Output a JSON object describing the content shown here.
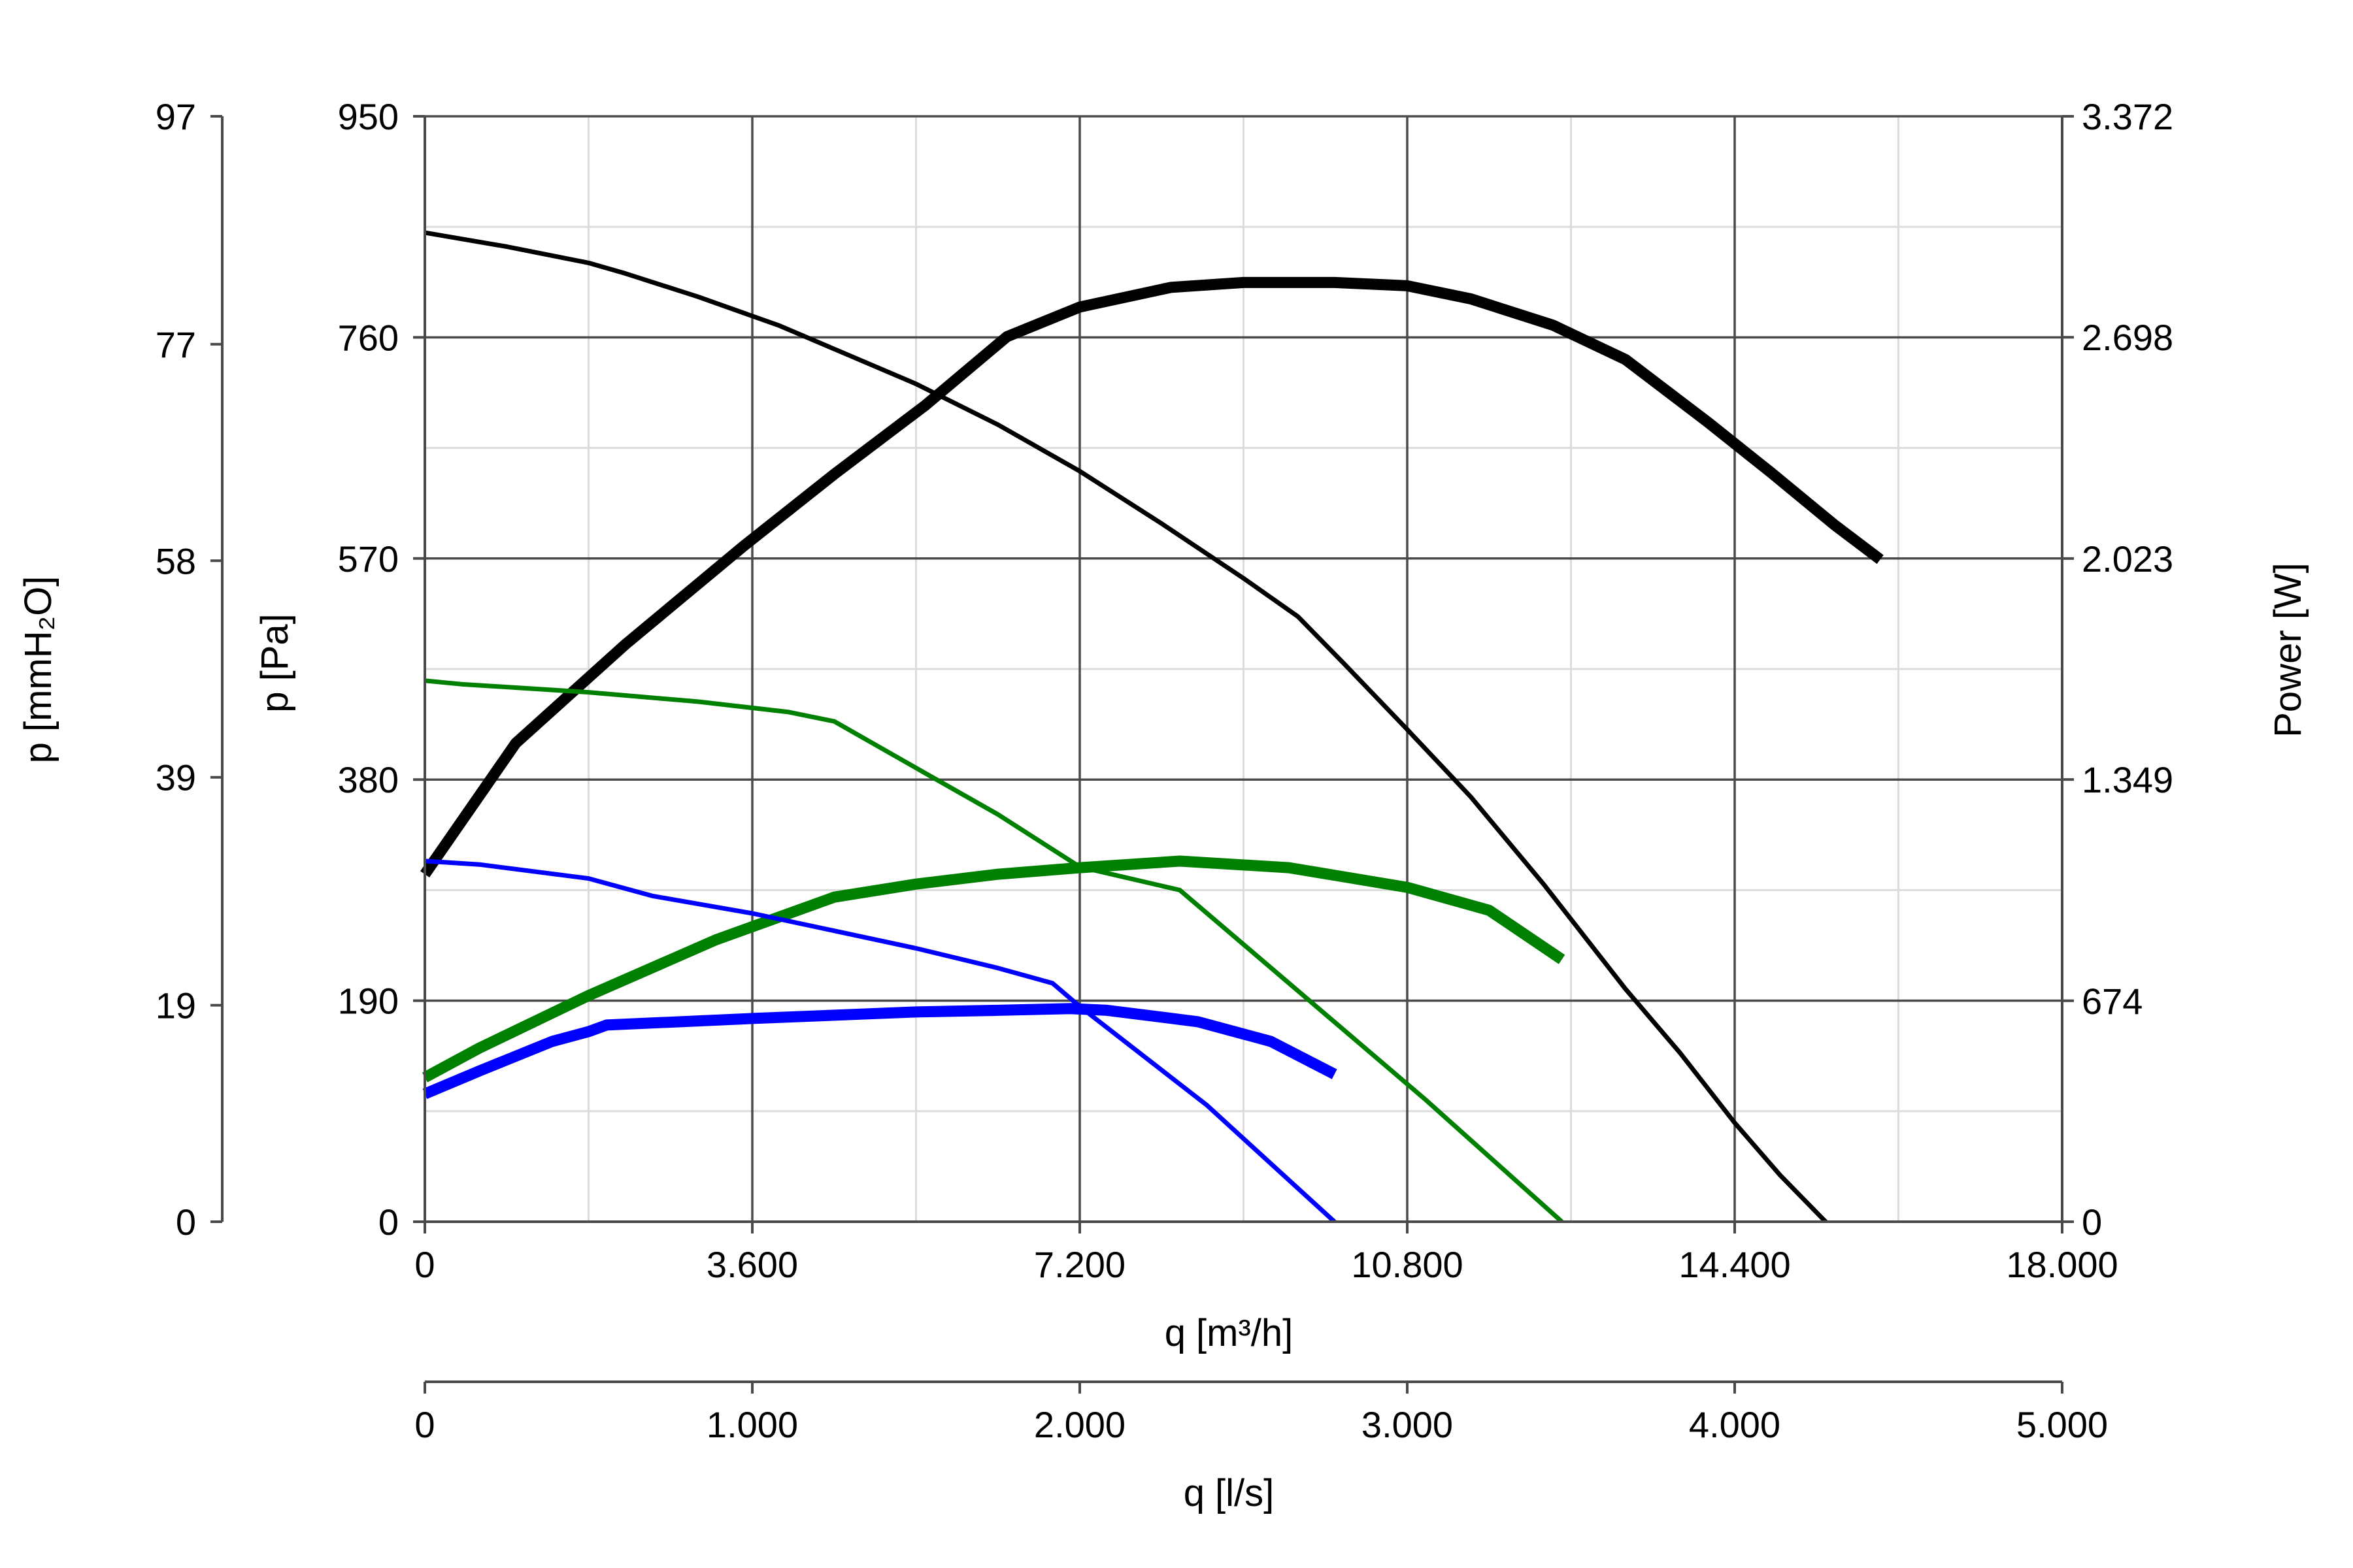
{
  "chart_data": {
    "type": "line",
    "axes": {
      "x_primary": {
        "label": "q [m³/h]",
        "range": [
          0,
          18000
        ],
        "ticks": [
          0,
          3600,
          7200,
          10800,
          14400,
          18000
        ],
        "tick_labels": [
          "0",
          "3.600",
          "7.200",
          "10.800",
          "14.400",
          "18.000"
        ]
      },
      "x_secondary": {
        "label": "q [l/s]",
        "range": [
          0,
          5000
        ],
        "ticks": [
          0,
          1000,
          2000,
          3000,
          4000,
          5000
        ],
        "tick_labels": [
          "0",
          "1.000",
          "2.000",
          "3.000",
          "4.000",
          "5.000"
        ]
      },
      "y_pressure_pa": {
        "label": "p [Pa]",
        "range": [
          0,
          950
        ],
        "ticks": [
          0,
          190,
          380,
          570,
          760,
          950
        ],
        "tick_labels": [
          "0",
          "190",
          "380",
          "570",
          "760",
          "950"
        ]
      },
      "y_pressure_mmh2o": {
        "label": "p [mmH₂O]",
        "range": [
          0,
          97
        ],
        "ticks": [
          0,
          19,
          39,
          58,
          77,
          97
        ],
        "tick_labels": [
          "0",
          "19",
          "39",
          "58",
          "77",
          "97"
        ]
      },
      "y_power": {
        "label": "Power [W]",
        "range": [
          0,
          3372
        ],
        "ticks": [
          0,
          674,
          1349,
          2023,
          2698,
          3372
        ],
        "tick_labels": [
          "0",
          "674",
          "1.349",
          "2.023",
          "2.698",
          "3.372"
        ]
      }
    },
    "grid": true,
    "series": [
      {
        "color": "#000000",
        "kind": "pressure",
        "x": [
          0,
          900,
          1800,
          2200,
          3000,
          3900,
          4500,
          5400,
          6300,
          7200,
          8100,
          9000,
          9600,
          10100,
          10800,
          11500,
          12300,
          13200,
          13800,
          14400,
          14900,
          15400,
          15800,
          16000
        ],
        "y": [
          850,
          838,
          824,
          815,
          795,
          770,
          750,
          720,
          685,
          645,
          600,
          553,
          520,
          480,
          423,
          365,
          290,
          200,
          145,
          85,
          40,
          0,
          -60,
          -110
        ]
      },
      {
        "color": "#000000",
        "kind": "power",
        "x": [
          0,
          1000,
          2200,
          3500,
          4500,
          5500,
          6400,
          7200,
          8200,
          9000,
          10000,
          10800,
          11500,
          12400,
          13200,
          14100,
          14800,
          15500,
          16000
        ],
        "y": [
          1060,
          1460,
          1760,
          2060,
          2280,
          2490,
          2700,
          2790,
          2850,
          2865,
          2865,
          2855,
          2815,
          2735,
          2630,
          2440,
          2285,
          2125,
          2020
        ]
      },
      {
        "color": "#008000",
        "kind": "pressure",
        "x": [
          0,
          400,
          1800,
          3000,
          4000,
          4500,
          5400,
          6300,
          7200,
          8300,
          9500,
          11000,
          12500
        ],
        "y": [
          465,
          462,
          455,
          447,
          438,
          430,
          390,
          350,
          305,
          285,
          205,
          105,
          0
        ]
      },
      {
        "color": "#008000",
        "kind": "power",
        "x": [
          0,
          600,
          1800,
          3200,
          4500,
          5400,
          6300,
          7200,
          8300,
          9500,
          10800,
          11700,
          12500
        ],
        "y": [
          440,
          530,
          690,
          860,
          990,
          1030,
          1060,
          1080,
          1100,
          1080,
          1020,
          950,
          800
        ]
      },
      {
        "color": "#0000ff",
        "kind": "pressure",
        "x": [
          0,
          600,
          1800,
          2500,
          3600,
          4500,
          5400,
          6300,
          6900,
          7200,
          8600,
          10000
        ],
        "y": [
          310,
          307,
          295,
          280,
          265,
          250,
          235,
          218,
          205,
          185,
          100,
          0
        ]
      },
      {
        "color": "#0000ff",
        "kind": "power",
        "x": [
          0,
          600,
          1400,
          1800,
          2000,
          3600,
          5400,
          6300,
          7100,
          7500,
          8500,
          9300,
          10000
        ],
        "y": [
          390,
          460,
          550,
          580,
          600,
          620,
          640,
          645,
          650,
          645,
          610,
          550,
          450
        ]
      }
    ]
  }
}
